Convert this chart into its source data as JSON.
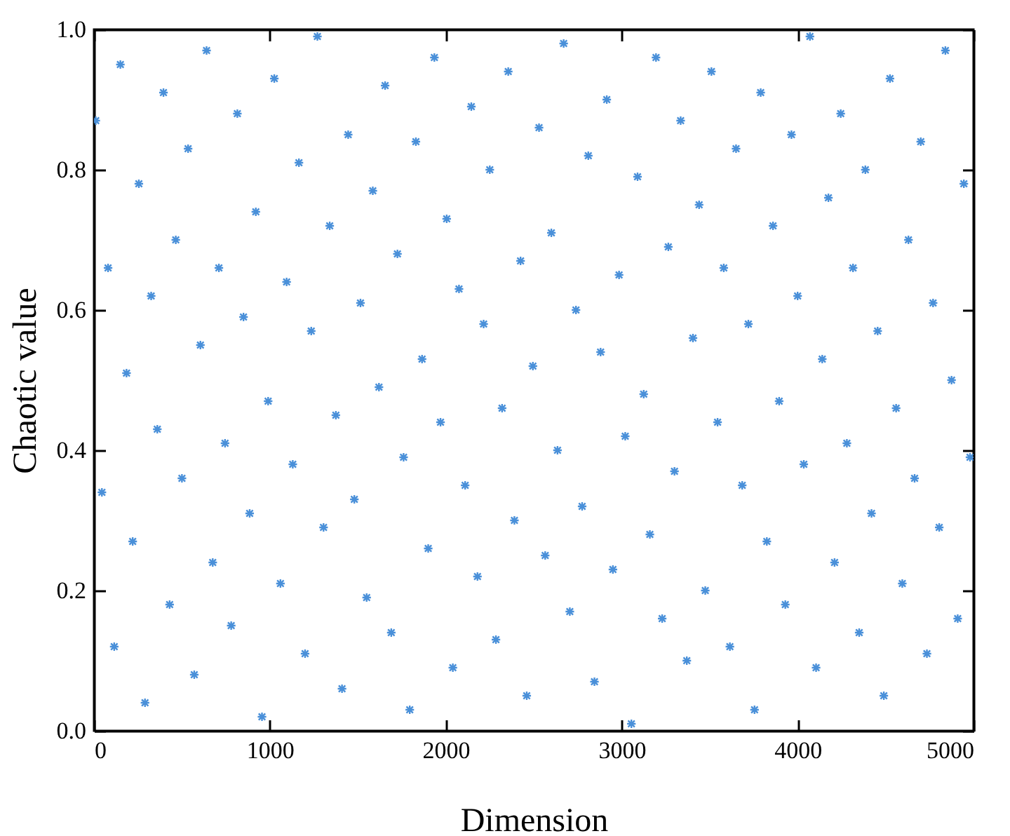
{
  "chart_data": {
    "type": "scatter",
    "xlabel": "Dimension",
    "ylabel": "Chaotic value",
    "xlim": [
      0,
      5000
    ],
    "xticks": [
      0,
      1000,
      2000,
      3000,
      4000,
      5000
    ],
    "ylim": [
      0,
      1
    ],
    "yticks": [
      {
        "value": 0,
        "label": "0.0"
      },
      {
        "value": 0.2,
        "label": "0.2"
      },
      {
        "value": 0.4,
        "label": "0.4"
      },
      {
        "value": 0.6,
        "label": "0.6"
      },
      {
        "value": 0.8,
        "label": "0.8"
      },
      {
        "value": 1,
        "label": "1.0"
      }
    ],
    "marker": "cross",
    "grid": false,
    "legend": false,
    "series": [
      {
        "color": "#4a90d9",
        "x": [
          10,
          45,
          80,
          115,
          150,
          185,
          220,
          255,
          290,
          325,
          360,
          395,
          430,
          465,
          500,
          535,
          570,
          605,
          640,
          675,
          710,
          745,
          780,
          815,
          850,
          885,
          920,
          955,
          990,
          1025,
          1060,
          1095,
          1130,
          1165,
          1200,
          1235,
          1270,
          1305,
          1340,
          1375,
          1410,
          1445,
          1480,
          1515,
          1550,
          1585,
          1620,
          1655,
          1690,
          1725,
          1760,
          1795,
          1830,
          1865,
          1900,
          1935,
          1970,
          2005,
          2040,
          2075,
          2110,
          2145,
          2180,
          2215,
          2250,
          2285,
          2320,
          2355,
          2390,
          2425,
          2460,
          2495,
          2530,
          2565,
          2600,
          2635,
          2670,
          2705,
          2740,
          2775,
          2810,
          2845,
          2880,
          2915,
          2950,
          2985,
          3020,
          3055,
          3090,
          3125,
          3160,
          3195,
          3230,
          3265,
          3300,
          3335,
          3370,
          3405,
          3440,
          3475,
          3510,
          3545,
          3580,
          3615,
          3650,
          3685,
          3720,
          3755,
          3790,
          3825,
          3860,
          3895,
          3930,
          3965,
          4000,
          4035,
          4070,
          4105,
          4140,
          4175,
          4210,
          4245,
          4280,
          4315,
          4350,
          4385,
          4420,
          4455,
          4490,
          4525,
          4560,
          4595,
          4630,
          4665,
          4700,
          4735,
          4770,
          4805,
          4840,
          4875,
          4910,
          4945,
          4980
        ],
        "values": [
          0.87,
          0.34,
          0.66,
          0.12,
          0.95,
          0.51,
          0.27,
          0.78,
          0.04,
          0.62,
          0.43,
          0.91,
          0.18,
          0.7,
          0.36,
          0.83,
          0.08,
          0.55,
          0.97,
          0.24,
          0.66,
          0.41,
          0.15,
          0.88,
          0.59,
          0.31,
          0.74,
          0.02,
          0.47,
          0.93,
          0.21,
          0.64,
          0.38,
          0.81,
          0.11,
          0.57,
          0.99,
          0.29,
          0.72,
          0.45,
          0.06,
          0.85,
          0.33,
          0.61,
          0.19,
          0.77,
          0.49,
          0.92,
          0.14,
          0.68,
          0.39,
          0.03,
          0.84,
          0.53,
          0.26,
          0.96,
          0.44,
          0.73,
          0.09,
          0.63,
          0.35,
          0.89,
          0.22,
          0.58,
          0.8,
          0.13,
          0.46,
          0.94,
          0.3,
          0.67,
          0.05,
          0.52,
          0.86,
          0.25,
          0.71,
          0.4,
          0.98,
          0.17,
          0.6,
          0.32,
          0.82,
          0.07,
          0.54,
          0.9,
          0.23,
          0.65,
          0.42,
          0.01,
          0.79,
          0.48,
          0.28,
          0.96,
          0.16,
          0.69,
          0.37,
          0.87,
          0.1,
          0.56,
          0.75,
          0.2,
          0.94,
          0.44,
          0.66,
          0.12,
          0.83,
          0.35,
          0.58,
          0.03,
          0.91,
          0.27,
          0.72,
          0.47,
          0.18,
          0.85,
          0.62,
          0.38,
          0.99,
          0.09,
          0.53,
          0.76,
          0.24,
          0.88,
          0.41,
          0.66,
          0.14,
          0.8,
          0.31,
          0.57,
          0.05,
          0.93,
          0.46,
          0.21,
          0.7,
          0.36,
          0.84,
          0.11,
          0.61,
          0.29,
          0.97,
          0.5,
          0.16,
          0.78,
          0.39
        ]
      }
    ]
  }
}
